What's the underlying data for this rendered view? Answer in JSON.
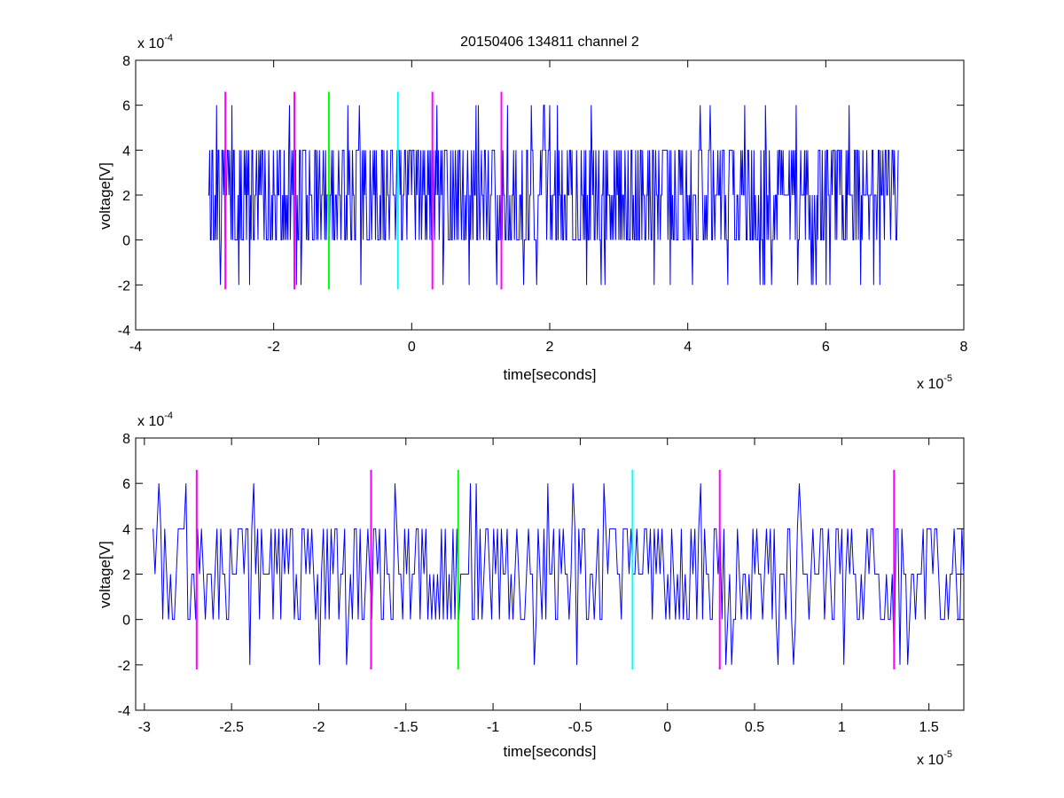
{
  "figure": {
    "title": "20150406 134811 channel 2",
    "background": "#ffffff"
  },
  "chart_data": [
    {
      "type": "line",
      "title": "20150406 134811 channel 2",
      "xlabel": "time[seconds]",
      "ylabel": "voltage[V]",
      "x_exponent_label": "x 10",
      "x_exponent": "-5",
      "y_exponent_label": "x 10",
      "y_exponent": "-4",
      "xlim": [
        -4,
        8
      ],
      "ylim": [
        -4,
        8
      ],
      "x_ticks": [
        -4,
        -2,
        0,
        2,
        4,
        6,
        8
      ],
      "y_ticks": [
        -4,
        -2,
        0,
        2,
        4,
        6,
        8
      ],
      "grid": false,
      "series": [
        {
          "color": "#0000ff",
          "x_range": [
            -2.95,
            7.05
          ],
          "y_levels": [
            -2,
            0,
            2,
            4,
            6
          ],
          "note_values": "quantized noise signal between -2 and 6 (x1e-4 V), mostly toggling 0/2/4"
        }
      ],
      "markers": [
        {
          "x": -2.7,
          "y_range": [
            -2.2,
            6.6
          ],
          "color": "#ff00ff"
        },
        {
          "x": -1.7,
          "y_range": [
            -2.2,
            6.6
          ],
          "color": "#ff00ff"
        },
        {
          "x": -1.2,
          "y_range": [
            -2.2,
            6.6
          ],
          "color": "#00ff00"
        },
        {
          "x": -0.2,
          "y_range": [
            -2.2,
            6.6
          ],
          "color": "#00ffff"
        },
        {
          "x": 0.3,
          "y_range": [
            -2.2,
            6.6
          ],
          "color": "#ff00ff"
        },
        {
          "x": 1.3,
          "y_range": [
            -2.2,
            6.6
          ],
          "color": "#ff00ff"
        }
      ]
    },
    {
      "type": "line",
      "title": "",
      "xlabel": "time[seconds]",
      "ylabel": "voltage[V]",
      "x_exponent_label": "x 10",
      "x_exponent": "-5",
      "y_exponent_label": "x 10",
      "y_exponent": "-4",
      "xlim": [
        -3.05,
        1.7
      ],
      "ylim": [
        -4,
        8
      ],
      "x_ticks": [
        -3,
        -2.5,
        -2,
        -1.5,
        -1,
        -0.5,
        0,
        0.5,
        1,
        1.5
      ],
      "y_ticks": [
        -4,
        -2,
        0,
        2,
        4,
        6,
        8
      ],
      "grid": false,
      "series": [
        {
          "color": "#0000ff",
          "x_range": [
            -2.95,
            1.7
          ],
          "y_levels": [
            -2,
            0,
            2,
            4,
            6
          ]
        }
      ],
      "markers": [
        {
          "x": -2.7,
          "y_range": [
            -2.2,
            6.6
          ],
          "color": "#ff00ff"
        },
        {
          "x": -1.7,
          "y_range": [
            -2.2,
            6.6
          ],
          "color": "#ff00ff"
        },
        {
          "x": -1.2,
          "y_range": [
            -2.2,
            6.6
          ],
          "color": "#00ff00"
        },
        {
          "x": -0.2,
          "y_range": [
            -2.2,
            6.6
          ],
          "color": "#00ffff"
        },
        {
          "x": 0.3,
          "y_range": [
            -2.2,
            6.6
          ],
          "color": "#ff00ff"
        },
        {
          "x": 1.3,
          "y_range": [
            -2.2,
            6.6
          ],
          "color": "#ff00ff"
        }
      ]
    }
  ]
}
